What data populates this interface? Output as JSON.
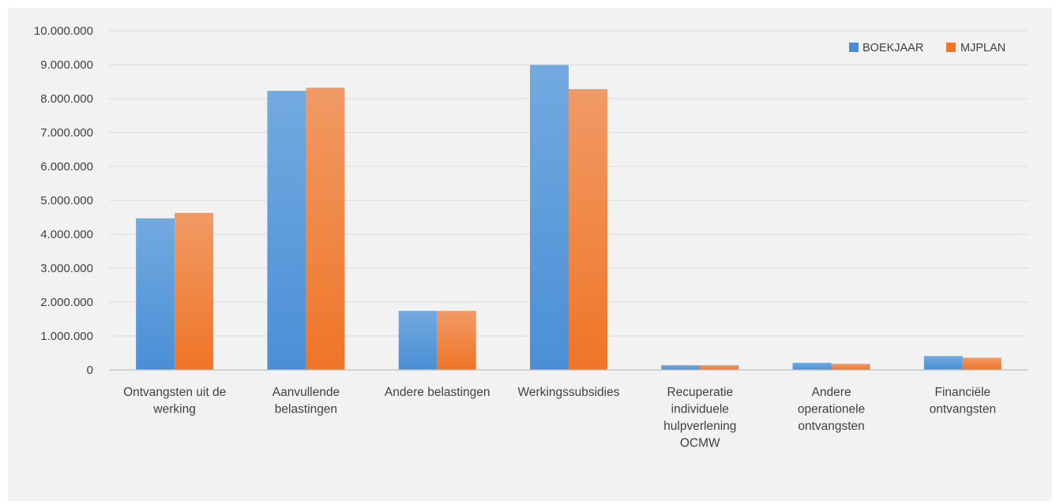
{
  "chart_data": {
    "type": "bar",
    "title": "",
    "xlabel": "",
    "ylabel": "",
    "ylim": [
      0,
      10000000
    ],
    "y_ticks": [
      0,
      1000000,
      2000000,
      3000000,
      4000000,
      5000000,
      6000000,
      7000000,
      8000000,
      9000000,
      10000000
    ],
    "y_tick_labels": [
      "0",
      "1.000.000",
      "2.000.000",
      "3.000.000",
      "4.000.000",
      "5.000.000",
      "6.000.000",
      "7.000.000",
      "8.000.000",
      "9.000.000",
      "10.000.000"
    ],
    "grid": true,
    "legend_position": "top-right",
    "categories": [
      [
        "Ontvangsten uit de",
        "werking"
      ],
      [
        "Aanvullende",
        "belastingen"
      ],
      [
        "Andere belastingen"
      ],
      [
        "Werkingssubsidies"
      ],
      [
        "Recuperatie",
        "individuele",
        "hulpverlening",
        "OCMW"
      ],
      [
        "Andere",
        "operationele",
        "ontvangsten"
      ],
      [
        "Financiële",
        "ontvangsten"
      ]
    ],
    "series": [
      {
        "name": "BOEKJAAR",
        "color": "#4a8fd6",
        "color_light": "#72aae0",
        "values": [
          4470000,
          8230000,
          1740000,
          8990000,
          140000,
          210000,
          410000
        ]
      },
      {
        "name": "MJPLAN",
        "color": "#ef7527",
        "color_light": "#f19a66",
        "values": [
          4630000,
          8320000,
          1740000,
          8280000,
          140000,
          180000,
          360000
        ]
      }
    ]
  }
}
